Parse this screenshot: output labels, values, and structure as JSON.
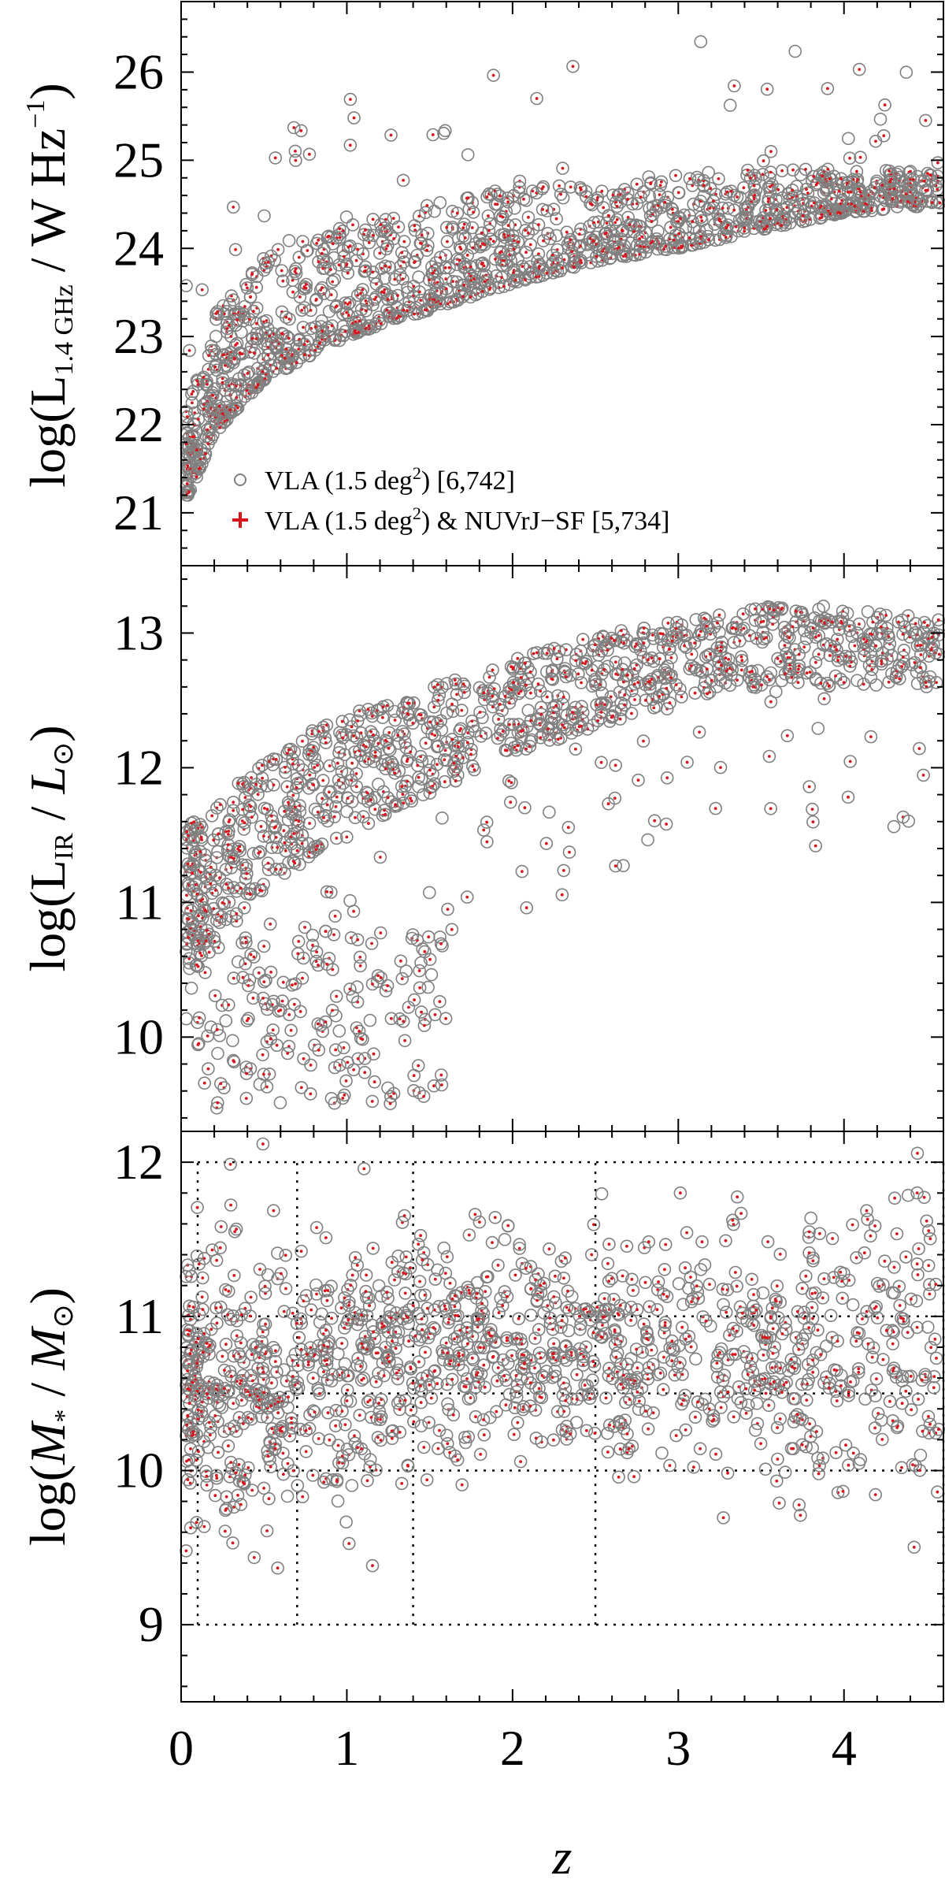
{
  "figure": {
    "xlabel": "z",
    "x_ticks": [
      "0",
      "1",
      "2",
      "3",
      "4"
    ],
    "colors": {
      "vla": "#808080",
      "sf": "#d9141b",
      "axes": "#000000"
    }
  },
  "panels": [
    {
      "ylabel_main": "log(L",
      "ylabel_sub": "1.4 GHz",
      "ylabel_rest": " / W Hz",
      "ylabel_sup": "−1",
      "ylabel_close": ")",
      "y_ticks": [
        "21",
        "22",
        "23",
        "24",
        "25",
        "26"
      ],
      "legend": [
        {
          "marker": "open-circle",
          "text": "VLA (1.5 deg",
          "sup": "2",
          "tail": ") [6,742]"
        },
        {
          "marker": "plus",
          "text": "VLA (1.5 deg",
          "sup": "2",
          "tail": ") & NUVrJ−SF [5,734]"
        }
      ]
    },
    {
      "ylabel_main": "log(L",
      "ylabel_sub": "IR",
      "ylabel_rest": " / ",
      "ylabel_italic": "L",
      "ylabel_sym": "⊙",
      "ylabel_close": ")",
      "y_ticks": [
        "10",
        "11",
        "12",
        "13"
      ]
    },
    {
      "ylabel_main": "log(",
      "ylabel_italic": "M",
      "ylabel_sub": "*",
      "ylabel_rest": " / ",
      "ylabel_italic2": "M",
      "ylabel_sym": "⊙",
      "ylabel_close": ")",
      "y_ticks": [
        "9",
        "10",
        "11",
        "12"
      ],
      "dotted_grid": {
        "z_edges": [
          0.1,
          0.7,
          1.4,
          2.5,
          4.6
        ],
        "log_mass_edges": [
          9.0,
          10.0,
          10.5,
          11.0,
          12.0
        ]
      }
    }
  ],
  "chart_data": [
    {
      "type": "scatter",
      "xlabel": "z",
      "ylabel": "log(L1.4 GHz / W Hz−1)",
      "xlim": [
        0,
        4.6
      ],
      "ylim": [
        20.4,
        26.8
      ],
      "series": [
        {
          "name": "VLA (1.5 deg2) [6,742]",
          "marker": "open circle",
          "color": "#808080",
          "count": 6742,
          "envelope": [
            [
              0.05,
              21.2,
              22.3
            ],
            [
              0.2,
              21.9,
              23.3
            ],
            [
              0.5,
              22.5,
              23.9
            ],
            [
              1.0,
              23.0,
              24.3
            ],
            [
              1.5,
              23.3,
              24.5
            ],
            [
              2.0,
              23.6,
              24.7
            ],
            [
              2.5,
              23.85,
              24.8
            ],
            [
              3.0,
              24.0,
              24.85
            ],
            [
              3.5,
              24.2,
              24.9
            ],
            [
              4.0,
              24.4,
              24.9
            ],
            [
              4.6,
              24.5,
              24.9
            ]
          ]
        },
        {
          "name": "VLA (1.5 deg2) & NUVrJ−SF [5,734]",
          "marker": "plus",
          "color": "#d9141b",
          "count": 5734
        }
      ]
    },
    {
      "type": "scatter",
      "xlabel": "z",
      "ylabel": "log(LIR / L⊙)",
      "xlim": [
        0,
        4.6
      ],
      "ylim": [
        9.3,
        13.5
      ],
      "series": [
        {
          "name": "VLA (1.5 deg2) [6,742]",
          "marker": "open circle",
          "color": "#808080",
          "main_sequence": [
            [
              0.1,
              10.5,
              11.6
            ],
            [
              0.5,
              11.1,
              12.1
            ],
            [
              1.0,
              11.5,
              12.4
            ],
            [
              1.5,
              11.8,
              12.6
            ],
            [
              2.0,
              12.1,
              12.8
            ],
            [
              2.5,
              12.3,
              13.0
            ],
            [
              3.0,
              12.5,
              13.1
            ],
            [
              3.5,
              12.6,
              13.2
            ],
            [
              4.0,
              12.6,
              13.2
            ],
            [
              4.6,
              12.6,
              13.1
            ]
          ],
          "low_cloud": {
            "z": [
              0.2,
              1.6
            ],
            "log_lir": [
              9.5,
              10.8
            ]
          }
        },
        {
          "name": "VLA (1.5 deg2) & NUVrJ−SF [5,734]",
          "marker": "plus",
          "color": "#d9141b"
        }
      ]
    },
    {
      "type": "scatter",
      "xlabel": "z",
      "ylabel": "log(M* / M⊙)",
      "xlim": [
        0,
        4.6
      ],
      "ylim": [
        8.5,
        12.2
      ],
      "series": [
        {
          "name": "VLA (1.5 deg2) [6,742]",
          "marker": "open circle",
          "color": "#808080",
          "distribution": [
            [
              0.3,
              10.5,
              0.45
            ],
            [
              1.0,
              10.7,
              0.4
            ],
            [
              1.8,
              10.75,
              0.35
            ],
            [
              2.7,
              10.8,
              0.35
            ],
            [
              3.7,
              10.8,
              0.45
            ],
            [
              4.4,
              10.9,
              0.5
            ]
          ]
        },
        {
          "name": "VLA (1.5 deg2) & NUVrJ−SF [5,734]",
          "marker": "plus",
          "color": "#d9141b"
        }
      ],
      "grid_z_edges": [
        0.1,
        0.7,
        1.4,
        2.5,
        4.6
      ],
      "grid_log_mass_edges": [
        9.0,
        10.0,
        10.5,
        11.0,
        12.0
      ]
    }
  ]
}
